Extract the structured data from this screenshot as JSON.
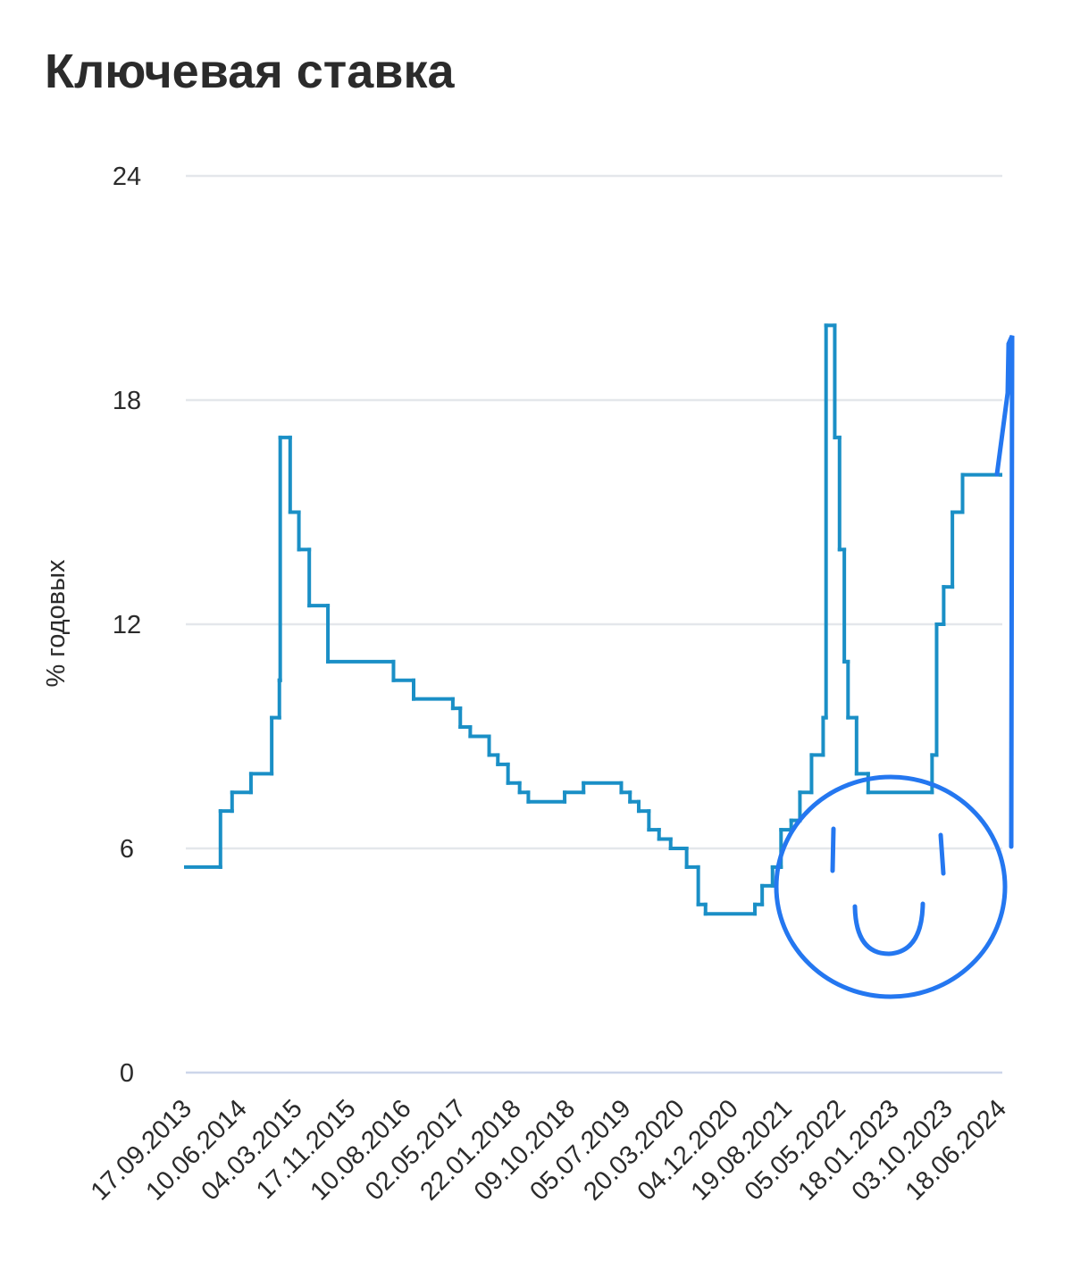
{
  "chart_data": {
    "type": "line",
    "title": "Ключевая ставка",
    "y_label": "% годовых",
    "step": true,
    "grid": true,
    "xlim": [
      "17.09.2013",
      "18.06.2024"
    ],
    "xticks": [
      "17.09.2013",
      "10.06.2014",
      "04.03.2015",
      "17.11.2015",
      "10.08.2016",
      "02.05.2017",
      "22.01.2018",
      "09.10.2018",
      "05.07.2019",
      "20.03.2020",
      "04.12.2020",
      "19.08.2021",
      "05.05.2022",
      "18.01.2023",
      "03.10.2023",
      "18.06.2024"
    ],
    "ylim": [
      0,
      24
    ],
    "yticks": [
      0,
      6,
      12,
      18,
      24
    ],
    "series": [
      {
        "name": "Ключевая ставка",
        "color": "#1a8fc6",
        "x": [
          "17.09.2013",
          "03.03.2014",
          "28.04.2014",
          "28.07.2014",
          "05.11.2014",
          "12.12.2014",
          "16.12.2014",
          "02.02.2015",
          "16.03.2015",
          "05.05.2015",
          "03.08.2015",
          "14.06.2016",
          "19.09.2016",
          "27.03.2017",
          "02.05.2017",
          "19.06.2017",
          "18.09.2017",
          "30.10.2017",
          "18.12.2017",
          "12.02.2018",
          "26.03.2018",
          "17.09.2018",
          "17.12.2018",
          "17.06.2019",
          "29.07.2019",
          "09.09.2019",
          "28.10.2019",
          "16.12.2019",
          "10.02.2020",
          "27.04.2020",
          "22.06.2020",
          "27.07.2020",
          "22.03.2021",
          "26.04.2021",
          "15.06.2021",
          "26.07.2021",
          "13.09.2021",
          "25.10.2021",
          "20.12.2021",
          "14.02.2022",
          "28.02.2022",
          "11.04.2022",
          "04.05.2022",
          "27.05.2022",
          "14.06.2022",
          "25.07.2022",
          "19.09.2022",
          "24.07.2023",
          "15.08.2023",
          "18.09.2023",
          "30.10.2023",
          "18.12.2023",
          "18.06.2024"
        ],
        "values": [
          5.5,
          7,
          7.5,
          8,
          9.5,
          10.5,
          17,
          15,
          14,
          12.5,
          11,
          10.5,
          10,
          9.75,
          9.25,
          9,
          8.5,
          8.25,
          7.75,
          7.5,
          7.25,
          7.5,
          7.75,
          7.5,
          7.25,
          7,
          6.5,
          6.25,
          6,
          5.5,
          4.5,
          4.25,
          4.5,
          5,
          5.5,
          6.5,
          6.75,
          7.5,
          8.5,
          9.5,
          20,
          17,
          14,
          11,
          9.5,
          8,
          7.5,
          8.5,
          12,
          13,
          15,
          16,
          16
        ]
      }
    ]
  }
}
